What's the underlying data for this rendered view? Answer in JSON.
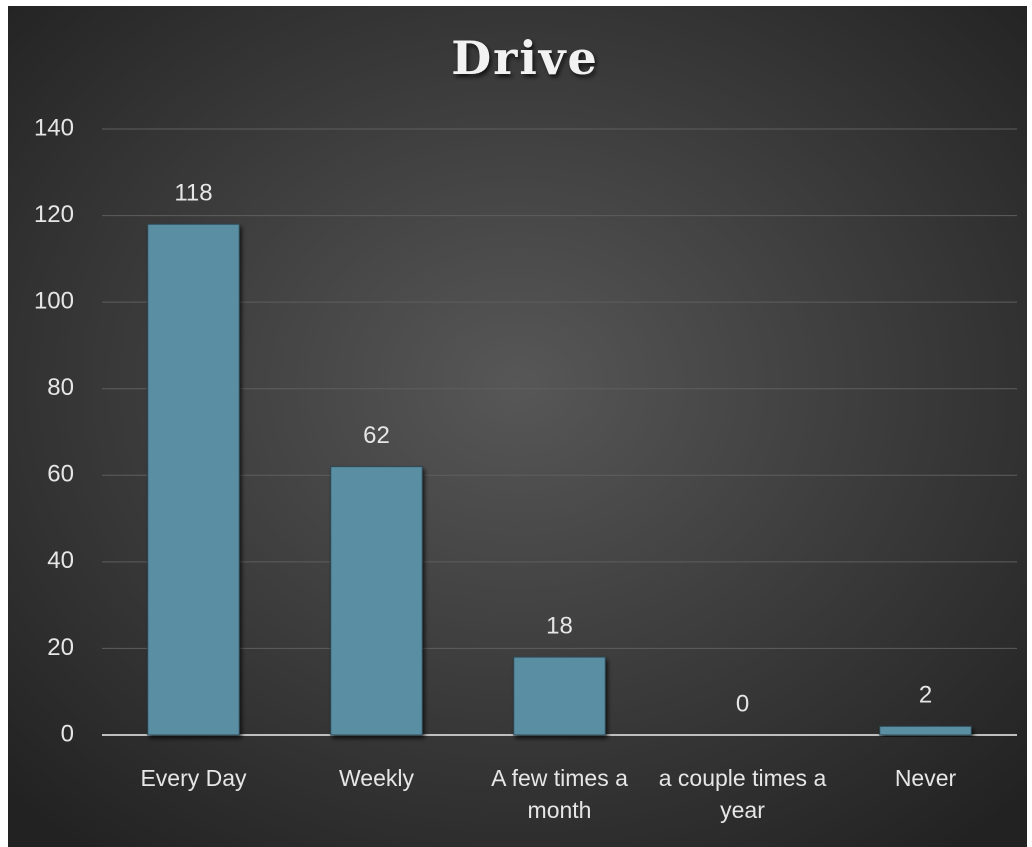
{
  "chart_data": {
    "type": "bar",
    "title": "Drive",
    "categories": [
      "Every Day",
      "Weekly",
      "A few times a month",
      "a couple times a year",
      "Never"
    ],
    "values": [
      118,
      62,
      18,
      0,
      2
    ],
    "color": "#5a8ea3",
    "ylim": [
      0,
      140
    ],
    "yticks": [
      0,
      20,
      40,
      60,
      80,
      100,
      120,
      140
    ],
    "grid": true
  }
}
